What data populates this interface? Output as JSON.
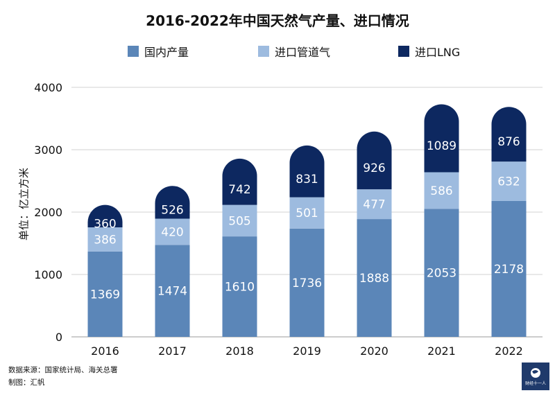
{
  "chart_data": {
    "type": "bar",
    "stacked": true,
    "title": "2016-2022年中国天然气产量、进口情况",
    "ylabel": "单位：亿立方米",
    "xlabel": "",
    "ylim": [
      0,
      4000
    ],
    "yticks": [
      0,
      1000,
      2000,
      3000,
      4000
    ],
    "grid": true,
    "legend_position": "top",
    "categories": [
      "2016",
      "2017",
      "2018",
      "2019",
      "2020",
      "2021",
      "2022"
    ],
    "series": [
      {
        "name": "国内产量",
        "color": "#5b86b8",
        "values": [
          1369,
          1474,
          1610,
          1736,
          1888,
          2053,
          2178
        ]
      },
      {
        "name": "进口管道气",
        "color": "#9dbbdf",
        "values": [
          386,
          420,
          505,
          501,
          477,
          586,
          632
        ]
      },
      {
        "name": "进口LNG",
        "color": "#0d2860",
        "values": [
          360,
          526,
          742,
          831,
          926,
          1089,
          876
        ]
      }
    ]
  },
  "footer": {
    "source": "数据来源：国家统计局、海关总署",
    "credit": "制图：汇帆"
  },
  "logo": {
    "text": "财经十一人"
  }
}
